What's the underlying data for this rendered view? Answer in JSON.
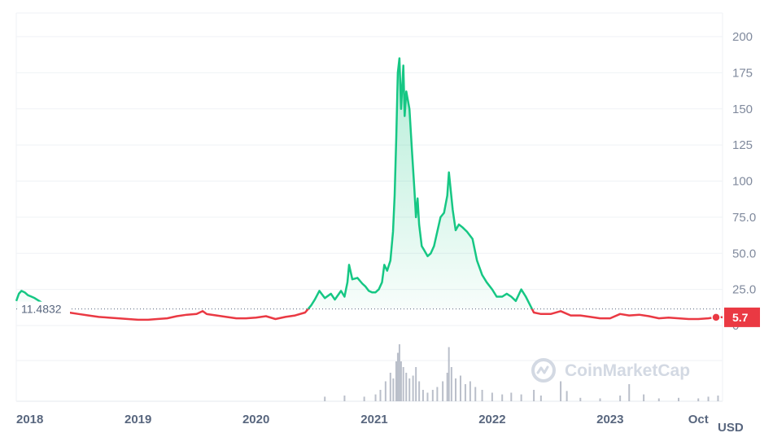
{
  "chart_data": {
    "type": "line",
    "unit_label": "USD",
    "reference_value": 11.4832,
    "reference_label": "11.4832",
    "current_value": 5.7,
    "current_label": "5.7",
    "ylim": [
      0,
      210
    ],
    "yticks": [
      {
        "label": "200",
        "value": 200
      },
      {
        "label": "175",
        "value": 175
      },
      {
        "label": "150",
        "value": 150
      },
      {
        "label": "125",
        "value": 125
      },
      {
        "label": "100",
        "value": 100
      },
      {
        "label": "75.0",
        "value": 75
      },
      {
        "label": "50.0",
        "value": 50
      },
      {
        "label": "25.0",
        "value": 25
      },
      {
        "label": "0",
        "value": 0
      }
    ],
    "xticks": [
      {
        "label": "2018",
        "date": "2018-01-01"
      },
      {
        "label": "2019",
        "date": "2019-01-01"
      },
      {
        "label": "2020",
        "date": "2020-01-01"
      },
      {
        "label": "2021",
        "date": "2021-01-01"
      },
      {
        "label": "2022",
        "date": "2022-01-01"
      },
      {
        "label": "2023",
        "date": "2023-01-01"
      },
      {
        "label": "Oct",
        "date": "2023-10-01"
      }
    ],
    "x_range": [
      "2017-12-20",
      "2023-12-15"
    ],
    "grid": true,
    "colors": {
      "above": "#16c784",
      "below": "#ea3943",
      "volume": "#a3aab8"
    },
    "series": [
      {
        "points": [
          [
            "2017-12-20",
            17
          ],
          [
            "2017-12-28",
            22
          ],
          [
            "2018-01-05",
            24
          ],
          [
            "2018-01-15",
            23
          ],
          [
            "2018-01-25",
            21
          ],
          [
            "2018-02-05",
            20
          ],
          [
            "2018-02-15",
            19
          ],
          [
            "2018-03-01",
            17
          ],
          [
            "2018-03-15",
            15
          ],
          [
            "2018-04-01",
            13
          ],
          [
            "2018-04-20",
            12
          ],
          [
            "2018-05-10",
            10
          ],
          [
            "2018-06-01",
            9
          ],
          [
            "2018-07-01",
            8
          ],
          [
            "2018-08-01",
            7
          ],
          [
            "2018-09-01",
            6
          ],
          [
            "2018-10-01",
            5.5
          ],
          [
            "2018-11-01",
            5
          ],
          [
            "2018-12-01",
            4.5
          ],
          [
            "2019-01-01",
            4
          ],
          [
            "2019-02-01",
            4
          ],
          [
            "2019-03-01",
            4.5
          ],
          [
            "2019-04-01",
            5
          ],
          [
            "2019-05-01",
            6.5
          ],
          [
            "2019-06-01",
            7.5
          ],
          [
            "2019-07-01",
            8
          ],
          [
            "2019-07-20",
            10
          ],
          [
            "2019-08-01",
            8
          ],
          [
            "2019-09-01",
            7
          ],
          [
            "2019-10-01",
            6
          ],
          [
            "2019-11-01",
            5
          ],
          [
            "2019-12-01",
            5
          ],
          [
            "2020-01-01",
            5.5
          ],
          [
            "2020-02-01",
            6.5
          ],
          [
            "2020-03-01",
            4.5
          ],
          [
            "2020-04-01",
            6
          ],
          [
            "2020-05-01",
            7
          ],
          [
            "2020-06-01",
            9
          ],
          [
            "2020-06-20",
            14
          ],
          [
            "2020-07-01",
            18
          ],
          [
            "2020-07-15",
            24
          ],
          [
            "2020-08-01",
            19
          ],
          [
            "2020-08-20",
            22
          ],
          [
            "2020-09-01",
            18
          ],
          [
            "2020-09-20",
            24
          ],
          [
            "2020-10-01",
            20
          ],
          [
            "2020-10-10",
            30
          ],
          [
            "2020-10-15",
            42
          ],
          [
            "2020-10-25",
            32
          ],
          [
            "2020-11-10",
            33
          ],
          [
            "2020-11-25",
            29
          ],
          [
            "2020-12-05",
            27
          ],
          [
            "2020-12-15",
            24
          ],
          [
            "2020-12-25",
            23
          ],
          [
            "2021-01-05",
            23
          ],
          [
            "2021-01-15",
            25
          ],
          [
            "2021-01-25",
            30
          ],
          [
            "2021-02-01",
            42
          ],
          [
            "2021-02-10",
            38
          ],
          [
            "2021-02-20",
            45
          ],
          [
            "2021-02-28",
            65
          ],
          [
            "2021-03-05",
            90
          ],
          [
            "2021-03-10",
            130
          ],
          [
            "2021-03-15",
            175
          ],
          [
            "2021-03-20",
            185
          ],
          [
            "2021-03-25",
            150
          ],
          [
            "2021-04-01",
            180
          ],
          [
            "2021-04-05",
            145
          ],
          [
            "2021-04-10",
            162
          ],
          [
            "2021-04-20",
            150
          ],
          [
            "2021-04-28",
            120
          ],
          [
            "2021-05-05",
            95
          ],
          [
            "2021-05-10",
            75
          ],
          [
            "2021-05-15",
            88
          ],
          [
            "2021-05-20",
            70
          ],
          [
            "2021-05-28",
            55
          ],
          [
            "2021-06-05",
            52
          ],
          [
            "2021-06-15",
            48
          ],
          [
            "2021-06-25",
            50
          ],
          [
            "2021-07-05",
            55
          ],
          [
            "2021-07-15",
            65
          ],
          [
            "2021-07-25",
            75
          ],
          [
            "2021-08-05",
            78
          ],
          [
            "2021-08-15",
            90
          ],
          [
            "2021-08-20",
            106
          ],
          [
            "2021-08-25",
            95
          ],
          [
            "2021-09-01",
            80
          ],
          [
            "2021-09-10",
            66
          ],
          [
            "2021-09-20",
            70
          ],
          [
            "2021-10-01",
            68
          ],
          [
            "2021-10-15",
            65
          ],
          [
            "2021-11-01",
            60
          ],
          [
            "2021-11-15",
            45
          ],
          [
            "2021-12-01",
            35
          ],
          [
            "2021-12-15",
            30
          ],
          [
            "2022-01-01",
            25
          ],
          [
            "2022-01-15",
            20
          ],
          [
            "2022-02-01",
            20
          ],
          [
            "2022-02-15",
            22
          ],
          [
            "2022-03-01",
            20
          ],
          [
            "2022-03-15",
            17
          ],
          [
            "2022-04-01",
            25
          ],
          [
            "2022-04-15",
            20
          ],
          [
            "2022-05-01",
            13
          ],
          [
            "2022-05-10",
            9
          ],
          [
            "2022-06-01",
            8
          ],
          [
            "2022-07-01",
            8
          ],
          [
            "2022-08-01",
            10
          ],
          [
            "2022-09-01",
            7
          ],
          [
            "2022-10-01",
            7
          ],
          [
            "2022-11-01",
            6
          ],
          [
            "2022-12-01",
            5
          ],
          [
            "2023-01-01",
            5
          ],
          [
            "2023-02-01",
            8
          ],
          [
            "2023-03-01",
            7
          ],
          [
            "2023-04-01",
            7.5
          ],
          [
            "2023-05-01",
            6.5
          ],
          [
            "2023-06-01",
            5
          ],
          [
            "2023-07-01",
            5.5
          ],
          [
            "2023-08-01",
            5
          ],
          [
            "2023-09-01",
            4.5
          ],
          [
            "2023-10-01",
            4.5
          ],
          [
            "2023-11-01",
            5
          ],
          [
            "2023-12-01",
            6
          ],
          [
            "2023-12-15",
            5.7
          ]
        ]
      }
    ],
    "volume": [
      [
        "2020-08-01",
        0.08
      ],
      [
        "2020-10-01",
        0.1
      ],
      [
        "2020-12-01",
        0.08
      ],
      [
        "2021-01-05",
        0.12
      ],
      [
        "2021-01-20",
        0.2
      ],
      [
        "2021-02-05",
        0.35
      ],
      [
        "2021-02-20",
        0.5
      ],
      [
        "2021-03-01",
        0.4
      ],
      [
        "2021-03-10",
        0.7
      ],
      [
        "2021-03-15",
        0.85
      ],
      [
        "2021-03-20",
        1.0
      ],
      [
        "2021-03-25",
        0.7
      ],
      [
        "2021-04-01",
        0.6
      ],
      [
        "2021-04-10",
        0.5
      ],
      [
        "2021-04-20",
        0.4
      ],
      [
        "2021-05-01",
        0.45
      ],
      [
        "2021-05-10",
        0.6
      ],
      [
        "2021-05-20",
        0.35
      ],
      [
        "2021-06-01",
        0.2
      ],
      [
        "2021-06-15",
        0.15
      ],
      [
        "2021-07-01",
        0.2
      ],
      [
        "2021-07-15",
        0.25
      ],
      [
        "2021-08-01",
        0.35
      ],
      [
        "2021-08-15",
        0.5
      ],
      [
        "2021-08-20",
        0.95
      ],
      [
        "2021-08-28",
        0.6
      ],
      [
        "2021-09-10",
        0.4
      ],
      [
        "2021-09-25",
        0.45
      ],
      [
        "2021-10-10",
        0.3
      ],
      [
        "2021-10-25",
        0.35
      ],
      [
        "2021-11-10",
        0.25
      ],
      [
        "2021-12-01",
        0.2
      ],
      [
        "2022-01-01",
        0.15
      ],
      [
        "2022-02-01",
        0.12
      ],
      [
        "2022-03-01",
        0.15
      ],
      [
        "2022-04-01",
        0.12
      ],
      [
        "2022-05-10",
        0.2
      ],
      [
        "2022-06-01",
        0.1
      ],
      [
        "2022-08-01",
        0.35
      ],
      [
        "2022-08-20",
        0.18
      ],
      [
        "2022-10-01",
        0.06
      ],
      [
        "2022-12-01",
        0.05
      ],
      [
        "2023-02-01",
        0.1
      ],
      [
        "2023-03-01",
        0.3
      ],
      [
        "2023-04-15",
        0.12
      ],
      [
        "2023-06-01",
        0.05
      ],
      [
        "2023-08-01",
        0.06
      ],
      [
        "2023-10-01",
        0.05
      ],
      [
        "2023-11-01",
        0.08
      ],
      [
        "2023-12-01",
        0.1
      ]
    ],
    "watermark": {
      "text": "CoinMarketCap",
      "icon": "coinmarketcap-logo-icon"
    }
  }
}
